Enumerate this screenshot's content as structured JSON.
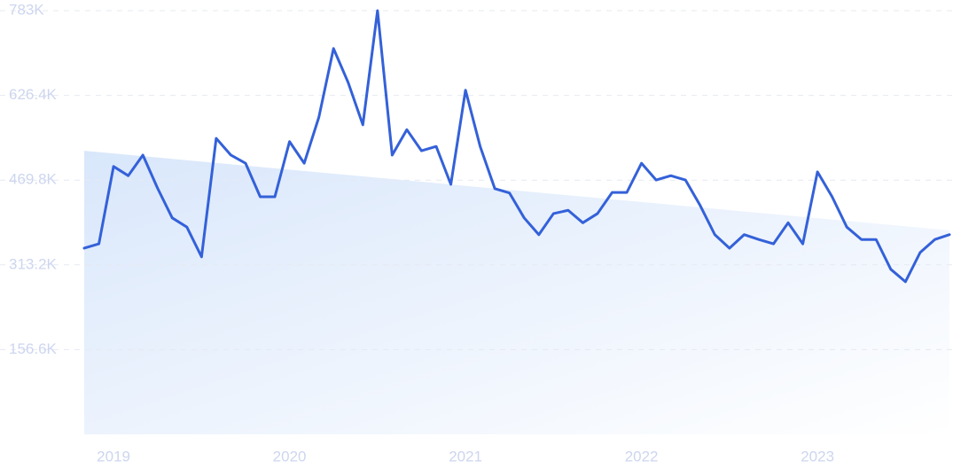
{
  "chart_data": {
    "type": "line",
    "categories": [
      null,
      null,
      "2019",
      null,
      null,
      null,
      null,
      null,
      null,
      null,
      null,
      null,
      null,
      null,
      "2020",
      null,
      null,
      null,
      null,
      null,
      null,
      null,
      null,
      null,
      null,
      null,
      "2021",
      null,
      null,
      null,
      null,
      null,
      null,
      null,
      null,
      null,
      null,
      null,
      "2022",
      null,
      null,
      null,
      null,
      null,
      null,
      null,
      null,
      null,
      null,
      null,
      "2023",
      null,
      null,
      null,
      null,
      null,
      null,
      null,
      null,
      null
    ],
    "series": [
      {
        "color": "#3461d9",
        "values": [
          344000,
          352000,
          495000,
          478000,
          516000,
          455000,
          400000,
          383000,
          328000,
          547000,
          516000,
          501000,
          439000,
          439000,
          541000,
          501000,
          586000,
          713000,
          650000,
          572000,
          783000,
          516000,
          563000,
          524000,
          532000,
          462000,
          636000,
          532000,
          454000,
          446000,
          400000,
          369000,
          408000,
          414000,
          391000,
          408000,
          447000,
          447000,
          501000,
          470000,
          478000,
          470000,
          423000,
          369000,
          344000,
          369000,
          360000,
          352000,
          391000,
          352000,
          485000,
          439000,
          383000,
          360000,
          360000,
          305000,
          282000,
          336000,
          360000,
          369000
        ]
      }
    ],
    "trend_area": [
      524000,
      377000
    ],
    "ylim": [
      0,
      783000
    ],
    "yticks": [
      {
        "value": 156600,
        "label": "156.6K"
      },
      {
        "value": 313200,
        "label": "313.2K"
      },
      {
        "value": 469800,
        "label": "469.8K"
      },
      {
        "value": 626400,
        "label": "626.4K"
      },
      {
        "value": 783000,
        "label": "783K"
      }
    ],
    "grid": true
  }
}
